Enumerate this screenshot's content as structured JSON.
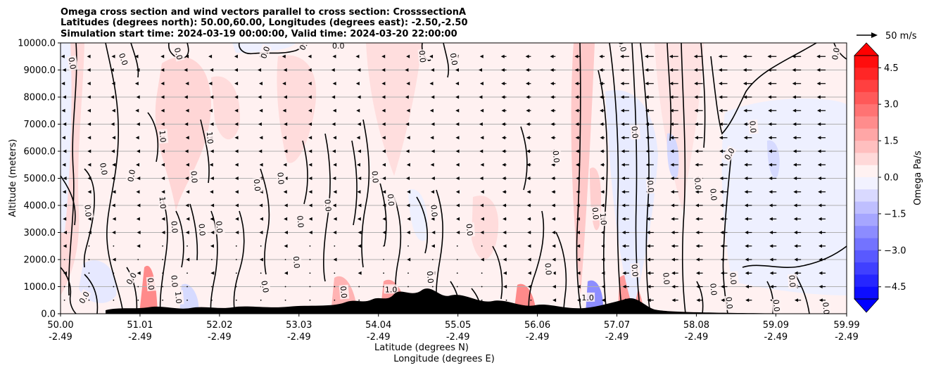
{
  "chart_data": {
    "type": "heatmap",
    "title_lines": [
      "Omega cross section and wind vectors parallel to cross section: CrosssectionA",
      "Latitudes (degrees north): 50.00,60.00, Longitudes (degrees east): -2.50,-2.50",
      "Simulation start time: 2024-03-19 00:00:00, Valid time: 2024-03-20 22:00:00"
    ],
    "ylabel": "Altitude (meters)",
    "xlabel_lines": [
      "Latitude (degrees N)",
      "Longitude (degrees E)"
    ],
    "ylim": [
      0,
      10000
    ],
    "y_ticks": [
      "0.0",
      "1000.0",
      "2000.0",
      "3000.0",
      "4000.0",
      "5000.0",
      "6000.0",
      "7000.0",
      "8000.0",
      "9000.0",
      "10000.0"
    ],
    "x_ticks": [
      {
        "lat": "50.00",
        "lon": "-2.49"
      },
      {
        "lat": "51.01",
        "lon": "-2.49"
      },
      {
        "lat": "52.02",
        "lon": "-2.49"
      },
      {
        "lat": "53.03",
        "lon": "-2.49"
      },
      {
        "lat": "54.04",
        "lon": "-2.49"
      },
      {
        "lat": "55.05",
        "lon": "-2.49"
      },
      {
        "lat": "56.06",
        "lon": "-2.49"
      },
      {
        "lat": "57.07",
        "lon": "-2.49"
      },
      {
        "lat": "58.08",
        "lon": "-2.49"
      },
      {
        "lat": "59.09",
        "lon": "-2.49"
      },
      {
        "lat": "59.99",
        "lon": "-2.49"
      }
    ],
    "grid": true,
    "colorbar": {
      "label": "Omega Pa/s",
      "range": [
        -5,
        5
      ],
      "ticks": [
        "4.5",
        "3.0",
        "1.5",
        "0.0",
        "−1.5",
        "−3.0",
        "−4.5"
      ],
      "tick_values": [
        4.5,
        3.0,
        1.5,
        0.0,
        -1.5,
        -3.0,
        -4.5
      ],
      "colors": {
        "positive": "#ff0000",
        "negative": "#0000ff",
        "neutral": "#ffffff"
      }
    },
    "quiver_key": "50 m/s",
    "contour_labels": [
      {
        "text": "0.0",
        "lat": 50.15,
        "alt": 9250,
        "rot": 80
      },
      {
        "text": "0.0",
        "lat": 50.8,
        "alt": 9400,
        "rot": 70
      },
      {
        "text": "0.0",
        "lat": 51.5,
        "alt": 9600,
        "rot": 75
      },
      {
        "text": "0.0",
        "lat": 52.6,
        "alt": 9650,
        "rot": -70
      },
      {
        "text": "0.0",
        "lat": 53.1,
        "alt": 9950,
        "rot": -60
      },
      {
        "text": "0.0",
        "lat": 53.53,
        "alt": 9900,
        "rot": 0
      },
      {
        "text": "0.0",
        "lat": 54.6,
        "alt": 9500,
        "rot": 85
      },
      {
        "text": "0.0",
        "lat": 55.0,
        "alt": 9400,
        "rot": 80
      },
      {
        "text": "0.0",
        "lat": 57.14,
        "alt": 9900,
        "rot": 75
      },
      {
        "text": "0.0",
        "lat": 59.85,
        "alt": 9600,
        "rot": -80
      },
      {
        "text": "1.0",
        "lat": 51.3,
        "alt": 6550,
        "rot": 85
      },
      {
        "text": "1.0",
        "lat": 51.9,
        "alt": 6500,
        "rot": 85
      },
      {
        "text": "0.0",
        "lat": 50.55,
        "alt": 5350,
        "rot": 80
      },
      {
        "text": "0.0",
        "lat": 50.9,
        "alt": 5100,
        "rot": -80
      },
      {
        "text": "0.0",
        "lat": 51.7,
        "alt": 5050,
        "rot": 85
      },
      {
        "text": "0.0",
        "lat": 52.5,
        "alt": 4750,
        "rot": 85
      },
      {
        "text": "0.0",
        "lat": 52.8,
        "alt": 5000,
        "rot": 85
      },
      {
        "text": "0.0",
        "lat": 53.4,
        "alt": 4000,
        "rot": 85
      },
      {
        "text": "0.0",
        "lat": 54.0,
        "alt": 5050,
        "rot": 85
      },
      {
        "text": "0.0",
        "lat": 50.35,
        "alt": 3800,
        "rot": 85
      },
      {
        "text": "1.0",
        "lat": 51.3,
        "alt": 4100,
        "rot": 85
      },
      {
        "text": "0.0",
        "lat": 51.45,
        "alt": 3200,
        "rot": 85
      },
      {
        "text": "0.0",
        "lat": 51.8,
        "alt": 3100,
        "rot": 85
      },
      {
        "text": "0.0",
        "lat": 52.02,
        "alt": 3200,
        "rot": 85
      },
      {
        "text": "0.0",
        "lat": 54.2,
        "alt": 4200,
        "rot": 85
      },
      {
        "text": "0.0",
        "lat": 54.75,
        "alt": 3800,
        "rot": 85
      },
      {
        "text": "0.0",
        "lat": 55.2,
        "alt": 3100,
        "rot": 85
      },
      {
        "text": "0.0",
        "lat": 57.5,
        "alt": 4700,
        "rot": 85
      },
      {
        "text": "0.0",
        "lat": 58.1,
        "alt": 4800,
        "rot": 85
      },
      {
        "text": "0.0",
        "lat": 58.3,
        "alt": 4400,
        "rot": 85
      },
      {
        "text": "0.0",
        "lat": 56.8,
        "alt": 3700,
        "rot": 85
      },
      {
        "text": "1.0",
        "lat": 56.9,
        "alt": 3500,
        "rot": 85
      },
      {
        "text": "0.0",
        "lat": 56.3,
        "alt": 5800,
        "rot": 85
      },
      {
        "text": "0.0",
        "lat": 57.3,
        "alt": 6700,
        "rot": 85
      },
      {
        "text": "0.0",
        "lat": 58.5,
        "alt": 5900,
        "rot": -60
      },
      {
        "text": "0.0",
        "lat": 58.8,
        "alt": 6900,
        "rot": 85
      },
      {
        "text": "0.0",
        "lat": 53.05,
        "alt": 3400,
        "rot": 85
      },
      {
        "text": "0.0",
        "lat": 53.0,
        "alt": 1900,
        "rot": 85
      },
      {
        "text": "0.0",
        "lat": 54.7,
        "alt": 1350,
        "rot": 85
      },
      {
        "text": "0.0",
        "lat": 56.2,
        "alt": 1650,
        "rot": 85
      },
      {
        "text": "0.0",
        "lat": 57.3,
        "alt": 1600,
        "rot": 85
      },
      {
        "text": "0.0",
        "lat": 51.15,
        "alt": 1100,
        "rot": 85
      },
      {
        "text": "0.0",
        "lat": 50.9,
        "alt": 1300,
        "rot": -60
      },
      {
        "text": "0.0",
        "lat": 50.3,
        "alt": 600,
        "rot": -60
      },
      {
        "text": "0.0",
        "lat": 51.45,
        "alt": 1200,
        "rot": 85
      },
      {
        "text": "0.0",
        "lat": 52.6,
        "alt": 1000,
        "rot": 80
      },
      {
        "text": "1.0",
        "lat": 51.5,
        "alt": 600,
        "rot": 85
      },
      {
        "text": "0.0",
        "lat": 53.6,
        "alt": 800,
        "rot": 85
      },
      {
        "text": "0.0",
        "lat": 57.7,
        "alt": 1300,
        "rot": 85
      },
      {
        "text": "0.0",
        "lat": 58.3,
        "alt": 900,
        "rot": 85
      },
      {
        "text": "0.0",
        "lat": 58.55,
        "alt": 1300,
        "rot": 85
      },
      {
        "text": "0.0",
        "lat": 59.3,
        "alt": 1200,
        "rot": 85
      },
      {
        "text": "0.0",
        "lat": 58.5,
        "alt": 400,
        "rot": 85
      },
      {
        "text": "0.0",
        "lat": 59.1,
        "alt": 300,
        "rot": 85
      },
      {
        "text": "0.0",
        "lat": 59.73,
        "alt": 200,
        "rot": 85
      },
      {
        "text": "1.0",
        "lat": 54.2,
        "alt": 900,
        "rot": 0
      },
      {
        "text": "1.0",
        "lat": 56.7,
        "alt": 600,
        "rot": 0
      }
    ]
  }
}
